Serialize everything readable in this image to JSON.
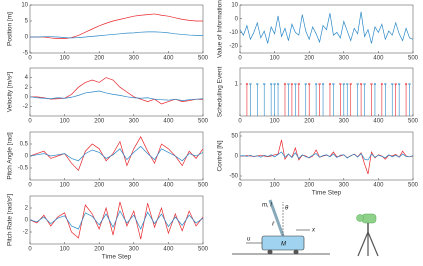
{
  "chart_data": [
    {
      "type": "line",
      "ylabel": "Position [m]",
      "x": [
        0,
        20,
        40,
        60,
        80,
        100,
        120,
        140,
        160,
        180,
        200,
        220,
        240,
        260,
        280,
        300,
        320,
        340,
        360,
        380,
        400,
        420,
        440,
        460,
        480,
        500
      ],
      "xlim": [
        0,
        500
      ],
      "xticks": [
        0,
        100,
        200,
        300,
        400,
        500
      ],
      "ylim": [
        -5,
        10
      ],
      "yticks": [
        -5,
        0,
        5,
        10
      ],
      "series": [
        {
          "color": "#e8262b",
          "values": [
            0,
            0,
            0,
            -0.3,
            -0.5,
            -0.5,
            -0.2,
            0.5,
            1.5,
            2.5,
            3.5,
            4.3,
            5,
            5.5,
            6,
            6.5,
            6.8,
            7,
            7.2,
            6.8,
            6.5,
            6,
            5.5,
            5.2,
            5,
            5
          ]
        },
        {
          "color": "#2a88c8",
          "values": [
            0,
            0,
            0.1,
            0.1,
            0,
            -0.2,
            -0.3,
            -0.2,
            0,
            0.2,
            0.4,
            0.6,
            0.8,
            1,
            1.2,
            1.3,
            1.5,
            1.6,
            1.6,
            1.5,
            1.3,
            1,
            0.8,
            0.6,
            0.5,
            0.5
          ]
        }
      ]
    },
    {
      "type": "line",
      "ylabel": "Velocity [m/s²]",
      "x": [
        0,
        20,
        40,
        60,
        80,
        100,
        120,
        140,
        160,
        180,
        200,
        220,
        240,
        260,
        280,
        300,
        320,
        340,
        360,
        380,
        400,
        420,
        440,
        460,
        480,
        500
      ],
      "xlim": [
        0,
        500
      ],
      "xticks": [
        0,
        100,
        200,
        300,
        400,
        500
      ],
      "ylim": [
        -4,
        6
      ],
      "yticks": [
        -2,
        0,
        2,
        4
      ],
      "series": [
        {
          "color": "#e8262b",
          "values": [
            0,
            0,
            -0.2,
            -0.5,
            -0.4,
            -0.3,
            0.5,
            2,
            3,
            3.5,
            3,
            4,
            3.5,
            2,
            1,
            0,
            -0.5,
            -1,
            -0.5,
            -1.5,
            -1,
            -0.5,
            -1,
            -0.8,
            -0.5,
            -0.6
          ]
        },
        {
          "color": "#2a88c8",
          "values": [
            0,
            -0.2,
            -0.3,
            -0.4,
            -0.2,
            -0.3,
            -0.1,
            0.3,
            0.8,
            1,
            1.2,
            0.8,
            0.5,
            0.3,
            0,
            -0.2,
            -0.3,
            -0.2,
            -0.5,
            -0.6,
            -0.7,
            -0.5,
            -0.8,
            -0.6,
            -0.5,
            -0.4
          ]
        }
      ]
    },
    {
      "type": "line",
      "ylabel": "Pitch Angle [rad]",
      "x": [
        0,
        20,
        40,
        60,
        80,
        100,
        120,
        140,
        160,
        180,
        200,
        220,
        240,
        260,
        280,
        300,
        320,
        340,
        360,
        380,
        400,
        420,
        440,
        460,
        480,
        500
      ],
      "xlim": [
        0,
        500
      ],
      "xticks": [
        0,
        100,
        200,
        300,
        400,
        500
      ],
      "ylim": [
        -1,
        1
      ],
      "yticks": [
        -0.5,
        0,
        0.5
      ],
      "series": [
        {
          "color": "#e8262b",
          "values": [
            0,
            0.1,
            0.2,
            -0.1,
            0,
            0.1,
            -0.3,
            -0.6,
            0.2,
            0.5,
            0.3,
            -0.2,
            0.1,
            0.6,
            -0.4,
            0.3,
            0.8,
            0.2,
            -0.3,
            0.5,
            0.3,
            0,
            -0.4,
            0.2,
            -0.1,
            0.3
          ]
        },
        {
          "color": "#2a88c8",
          "values": [
            0,
            0.05,
            0.1,
            0,
            0.05,
            0.1,
            -0.1,
            -0.2,
            0.1,
            0.25,
            0.15,
            -0.1,
            0.05,
            0.3,
            -0.15,
            0.15,
            0.4,
            0.1,
            -0.15,
            0.3,
            0.15,
            0,
            -0.2,
            0.1,
            0,
            0.15
          ]
        }
      ]
    },
    {
      "type": "line",
      "ylabel": "Pitch Rate [rad/s²]",
      "xlabel": "Time Step",
      "x": [
        0,
        20,
        40,
        60,
        80,
        100,
        120,
        140,
        160,
        180,
        200,
        220,
        240,
        260,
        280,
        300,
        320,
        340,
        360,
        380,
        400,
        420,
        440,
        460,
        480,
        500
      ],
      "xlim": [
        0,
        500
      ],
      "xticks": [
        0,
        100,
        200,
        300,
        400,
        500
      ],
      "ylim": [
        -4,
        4
      ],
      "yticks": [
        -2,
        0,
        2
      ],
      "series": [
        {
          "color": "#e8262b",
          "values": [
            0,
            -0.5,
            0.8,
            -1,
            0.5,
            1.2,
            -2,
            -3,
            2.5,
            1,
            -1.5,
            2,
            -2.5,
            3,
            -1,
            1.5,
            -3.2,
            2.8,
            -1.2,
            2,
            -2.2,
            1,
            -1.8,
            1.5,
            -1,
            0.5
          ]
        },
        {
          "color": "#2a88c8",
          "values": [
            0,
            -0.3,
            0.5,
            -0.6,
            0.3,
            0.7,
            -1,
            -1.5,
            1.2,
            0.6,
            -0.8,
            1,
            -1.2,
            1.5,
            -0.5,
            0.8,
            -1.5,
            1.3,
            -0.6,
            1,
            -1.1,
            0.5,
            -0.9,
            0.8,
            -0.5,
            0.3
          ]
        }
      ]
    },
    {
      "type": "line",
      "ylabel": "Value of Information",
      "x": [
        0,
        10,
        20,
        30,
        40,
        50,
        60,
        70,
        80,
        90,
        100,
        110,
        120,
        130,
        140,
        150,
        160,
        170,
        180,
        190,
        200,
        210,
        220,
        230,
        240,
        250,
        260,
        270,
        280,
        290,
        300,
        310,
        320,
        330,
        340,
        350,
        360,
        370,
        380,
        390,
        400,
        410,
        420,
        430,
        440,
        450,
        460,
        470,
        480,
        490,
        500
      ],
      "xlim": [
        0,
        500
      ],
      "xticks": [
        0,
        100,
        200,
        300,
        400,
        500
      ],
      "ylim": [
        -25,
        10
      ],
      "yticks": [
        -20,
        -10,
        0,
        10
      ],
      "series": [
        {
          "color": "#2a88c8",
          "values": [
            -8,
            -12,
            -5,
            -15,
            -10,
            -3,
            -14,
            -9,
            -18,
            -6,
            -11,
            2,
            -13,
            -7,
            -16,
            -4,
            -10,
            -12,
            3,
            -9,
            -15,
            -6,
            -11,
            -17,
            -5,
            -8,
            4,
            -12,
            -10,
            -14,
            -2,
            -9,
            -16,
            -7,
            -11,
            5,
            -13,
            -8,
            -18,
            -6,
            -10,
            -4,
            -15,
            -9,
            -12,
            -3,
            -11,
            -16,
            -7,
            -14,
            -15
          ]
        }
      ]
    },
    {
      "type": "stem",
      "ylabel": "Scheduling Event",
      "xlim": [
        0,
        500
      ],
      "xticks": [
        0,
        100,
        200,
        300,
        400,
        500
      ],
      "ylim": [
        0,
        1.5
      ],
      "yticks": [
        1
      ],
      "series": [
        {
          "color": "#e8262b",
          "x": [
            20,
            130,
            150,
            170,
            200,
            230,
            260,
            290,
            320,
            350,
            380,
            410,
            450,
            480
          ],
          "values": [
            1,
            1,
            1,
            1,
            1,
            1,
            1,
            1,
            1,
            1,
            1,
            1,
            1,
            1
          ]
        },
        {
          "color": "#2a88c8",
          "x": [
            30,
            50,
            70,
            90,
            100,
            110,
            140,
            160,
            190,
            220,
            240,
            270,
            300,
            310,
            340,
            360,
            390,
            420,
            440,
            460,
            490
          ],
          "values": [
            1,
            1,
            1,
            1,
            1,
            1,
            1,
            1,
            1,
            1,
            1,
            1,
            1,
            1,
            1,
            1,
            1,
            1,
            1,
            1,
            1
          ]
        }
      ]
    },
    {
      "type": "line",
      "ylabel": "Control [N]",
      "xlabel": "Time Step",
      "x": [
        0,
        10,
        20,
        30,
        40,
        50,
        60,
        70,
        80,
        90,
        100,
        110,
        120,
        130,
        140,
        150,
        160,
        170,
        180,
        190,
        200,
        210,
        220,
        230,
        240,
        250,
        260,
        270,
        280,
        290,
        300,
        310,
        320,
        330,
        340,
        350,
        360,
        370,
        380,
        390,
        400,
        410,
        420,
        430,
        440,
        450,
        460,
        470,
        480,
        490,
        500
      ],
      "xlim": [
        0,
        500
      ],
      "xticks": [
        0,
        100,
        200,
        300,
        400,
        500
      ],
      "ylim": [
        -60,
        60
      ],
      "yticks": [
        -50,
        0,
        50
      ],
      "series": [
        {
          "color": "#e8262b",
          "values": [
            0,
            0,
            1,
            0,
            -1,
            0,
            2,
            0,
            -2,
            0,
            3,
            5,
            40,
            -8,
            5,
            -3,
            20,
            -10,
            2,
            0,
            -5,
            0,
            15,
            -3,
            0,
            2,
            -1,
            10,
            -2,
            0,
            3,
            -4,
            0,
            5,
            -2,
            8,
            -20,
            -45,
            10,
            -5,
            3,
            0,
            -8,
            2,
            0,
            4,
            -3,
            12,
            0,
            -2,
            0
          ]
        },
        {
          "color": "#2a88c8",
          "values": [
            0,
            1,
            -1,
            2,
            -2,
            1,
            -3,
            2,
            -1,
            3,
            -2,
            4,
            10,
            -3,
            5,
            -4,
            8,
            -6,
            3,
            -2,
            -4,
            2,
            6,
            -3,
            1,
            3,
            -2,
            5,
            -4,
            2,
            3,
            -5,
            1,
            4,
            -3,
            6,
            -8,
            -10,
            5,
            -3,
            2,
            -1,
            -4,
            3,
            -2,
            2,
            -3,
            5,
            -1,
            -2,
            1
          ]
        }
      ]
    }
  ],
  "diagram": {
    "pendulum_label": "m, l",
    "angle_label": "θ",
    "length_label": "ℓ",
    "force_label": "u",
    "cart_label": "M",
    "position_label": "x"
  }
}
